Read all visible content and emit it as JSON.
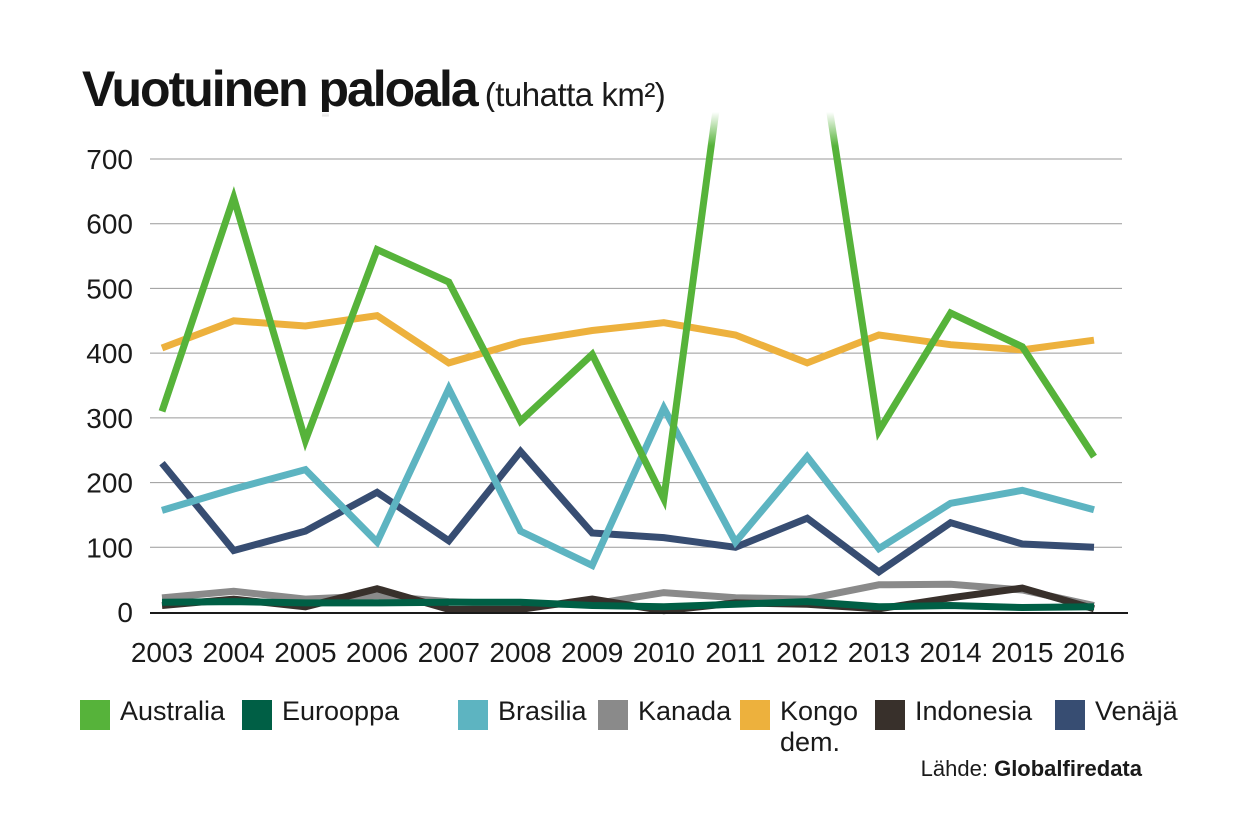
{
  "chart_data": {
    "type": "line",
    "title": "Vuotuinen paloala",
    "subtitle": "(tuhatta km²)",
    "xlabel": "",
    "ylabel": "",
    "x": [
      "2003",
      "2004",
      "2005",
      "2006",
      "2007",
      "2008",
      "2009",
      "2010",
      "2011",
      "2012",
      "2013",
      "2014",
      "2015",
      "2016"
    ],
    "ylim": [
      0,
      700
    ],
    "yticks": [
      0,
      100,
      200,
      300,
      400,
      500,
      600,
      700
    ],
    "grid": true,
    "legend": "bottom",
    "series": [
      {
        "name": "Australia",
        "color": "#56b33a",
        "values": [
          310,
          640,
          265,
          560,
          510,
          295,
          398,
          175,
          1000,
          1000,
          280,
          462,
          410,
          240
        ]
      },
      {
        "name": "Eurooppa",
        "color": "#005f45",
        "values": [
          15,
          16,
          14,
          14,
          15,
          15,
          10,
          8,
          12,
          16,
          8,
          10,
          7,
          8
        ]
      },
      {
        "name": "Brasilia",
        "color": "#5db4c1",
        "values": [
          157,
          190,
          220,
          108,
          345,
          125,
          72,
          315,
          108,
          240,
          98,
          168,
          188,
          158
        ]
      },
      {
        "name": "Kanada",
        "color": "#8a8a8a",
        "values": [
          22,
          32,
          20,
          25,
          16,
          12,
          12,
          30,
          22,
          20,
          42,
          43,
          34,
          10
        ]
      },
      {
        "name": "Kongo dem.",
        "color": "#edb13d",
        "values": [
          408,
          450,
          442,
          458,
          385,
          417,
          435,
          447,
          428,
          385,
          428,
          413,
          405,
          420
        ]
      },
      {
        "name": "Indonesia",
        "color": "#38302b",
        "values": [
          10,
          20,
          8,
          36,
          4,
          4,
          20,
          2,
          14,
          12,
          5,
          22,
          37,
          5
        ]
      },
      {
        "name": "Venäjä",
        "color": "#374d72",
        "values": [
          230,
          95,
          125,
          185,
          110,
          248,
          122,
          115,
          100,
          145,
          62,
          138,
          105,
          100
        ]
      }
    ],
    "legend_lines": [
      [
        "Australia"
      ],
      [
        "Eurooppa"
      ],
      [
        "Brasilia"
      ],
      [
        "Kanada"
      ],
      [
        "Kongo",
        "dem."
      ],
      [
        "Indonesia"
      ],
      [
        "Venäjä"
      ]
    ],
    "source_label": "Lähde:",
    "source_name": "Globalfiredata"
  }
}
